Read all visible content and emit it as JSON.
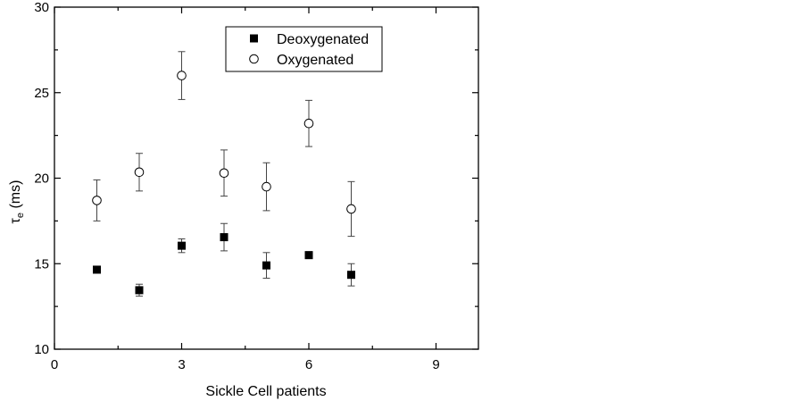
{
  "chart_data": {
    "type": "scatter",
    "title": "",
    "xlabel": "Sickle Cell patients",
    "ylabel": "τ",
    "ylabel_sub": "e",
    "ylabel_unit": " (ms)",
    "xlim": [
      0,
      10
    ],
    "ylim": [
      10,
      30
    ],
    "xticks": [
      0,
      3,
      6,
      9
    ],
    "yticks": [
      10,
      15,
      20,
      25,
      30
    ],
    "legend_position": "top-center",
    "grid": false,
    "series": [
      {
        "name": "Deoxygenated",
        "marker": "filled-square",
        "color": "#000000",
        "points": [
          {
            "x": 1,
            "y": 14.65,
            "err": 0.15
          },
          {
            "x": 2,
            "y": 13.45,
            "err": 0.35
          },
          {
            "x": 3,
            "y": 16.05,
            "err": 0.4
          },
          {
            "x": 4,
            "y": 16.55,
            "err": 0.8
          },
          {
            "x": 5,
            "y": 14.9,
            "err": 0.75
          },
          {
            "x": 6,
            "y": 15.5,
            "err": 0.2
          },
          {
            "x": 7,
            "y": 14.35,
            "err": 0.65
          }
        ]
      },
      {
        "name": "Oxygenated",
        "marker": "open-circle",
        "color": "#000000",
        "points": [
          {
            "x": 1,
            "y": 18.7,
            "err": 1.2
          },
          {
            "x": 2,
            "y": 20.35,
            "err": 1.1
          },
          {
            "x": 3,
            "y": 26.0,
            "err": 1.4
          },
          {
            "x": 4,
            "y": 20.3,
            "err": 1.35
          },
          {
            "x": 5,
            "y": 19.5,
            "err": 1.4
          },
          {
            "x": 6,
            "y": 23.2,
            "err": 1.35
          },
          {
            "x": 7,
            "y": 18.2,
            "err": 1.6
          }
        ]
      }
    ]
  }
}
